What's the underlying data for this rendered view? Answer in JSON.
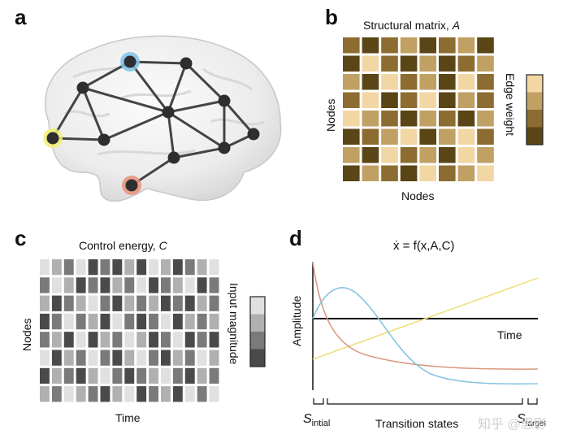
{
  "panels": {
    "a": {
      "letter": "a"
    },
    "b": {
      "letter": "b",
      "title_prefix": "Structural matrix, ",
      "title_var": "A",
      "xlabel": "Nodes",
      "ylabel": "Nodes",
      "legend_label": "Edge weight",
      "colors": [
        "#5a4516",
        "#8c6c30",
        "#c1a064",
        "#f2d6a3"
      ],
      "matrix": [
        [
          1,
          0,
          1,
          2,
          0,
          1,
          2,
          0
        ],
        [
          0,
          3,
          1,
          0,
          2,
          0,
          1,
          2
        ],
        [
          2,
          0,
          3,
          1,
          2,
          0,
          3,
          1
        ],
        [
          1,
          3,
          0,
          1,
          3,
          0,
          2,
          1
        ],
        [
          3,
          2,
          1,
          0,
          2,
          1,
          0,
          2
        ],
        [
          0,
          1,
          2,
          3,
          0,
          2,
          3,
          1
        ],
        [
          2,
          0,
          3,
          1,
          2,
          0,
          3,
          2
        ],
        [
          0,
          2,
          1,
          0,
          3,
          1,
          2,
          3
        ]
      ]
    },
    "c": {
      "letter": "c",
      "title_prefix": "Control energy, ",
      "title_var": "C",
      "xlabel": "Time",
      "ylabel": "Nodes",
      "legend_label": "Input magnitude",
      "colors": [
        "#4a4a4a",
        "#7a7a7a",
        "#b0b0b0",
        "#e0e0e0"
      ],
      "matrix": [
        [
          3,
          2,
          1,
          3,
          0,
          1,
          0,
          2,
          0,
          3,
          2,
          0,
          1,
          2,
          3
        ],
        [
          1,
          3,
          2,
          0,
          1,
          0,
          2,
          1,
          3,
          0,
          1,
          2,
          3,
          0,
          1
        ],
        [
          2,
          0,
          1,
          2,
          3,
          1,
          0,
          2,
          1,
          2,
          0,
          1,
          0,
          2,
          1
        ],
        [
          0,
          1,
          3,
          1,
          2,
          0,
          3,
          1,
          0,
          1,
          3,
          0,
          2,
          1,
          2
        ],
        [
          1,
          2,
          0,
          3,
          0,
          2,
          1,
          3,
          2,
          0,
          1,
          3,
          0,
          1,
          0
        ],
        [
          3,
          0,
          2,
          1,
          3,
          1,
          0,
          2,
          3,
          1,
          0,
          2,
          1,
          3,
          2
        ],
        [
          0,
          2,
          1,
          0,
          2,
          3,
          1,
          0,
          1,
          2,
          3,
          1,
          0,
          2,
          1
        ],
        [
          2,
          1,
          3,
          2,
          1,
          0,
          2,
          3,
          0,
          1,
          2,
          0,
          3,
          1,
          3
        ]
      ]
    },
    "d": {
      "letter": "d",
      "equation": "ẋ = f(x,A,C)",
      "ylabel": "Amplitude",
      "time_label": "Time",
      "s_initial": "S",
      "s_initial_sub": "intial",
      "s_target": "S",
      "s_target_sub": "target",
      "transition_label": "Transition states",
      "curve_colors": {
        "blue": "#86c4e4",
        "orange": "#d99a80",
        "yellow": "#efe07e"
      }
    }
  },
  "graph": {
    "node_color": "#2e2e2e",
    "edge_color": "#444444",
    "highlights": {
      "blue": "#7cc2ea",
      "yellow": "#f2ee72",
      "orange": "#e9917a"
    }
  },
  "watermark": "知乎 @思影"
}
